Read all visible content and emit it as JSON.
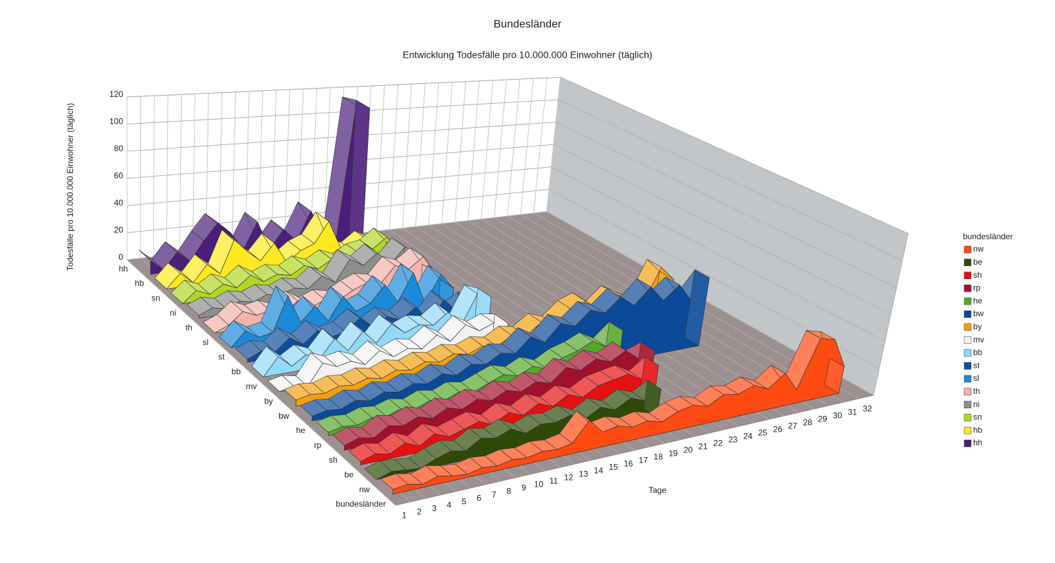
{
  "chart_data": {
    "type": "3d-area",
    "title": "Bundesländer",
    "subtitle": "Entwicklung Todesfälle pro 10.000.000 Einwohner (täglich)",
    "x_label": "Tage",
    "y_label": "Todesfälle pro 10.000.000 Einwohner (täglich)",
    "z_label": "bundesländer",
    "legend_title": "bundesländer",
    "legend": "right",
    "grid": true,
    "categories": [
      "1",
      "2",
      "3",
      "4",
      "5",
      "6",
      "7",
      "8",
      "9",
      "10",
      "11",
      "12",
      "13",
      "14",
      "15",
      "16",
      "17",
      "18",
      "19",
      "20",
      "21",
      "22",
      "23",
      "24",
      "25",
      "26",
      "27",
      "28",
      "29",
      "30",
      "31",
      "32"
    ],
    "ylim": [
      0,
      120
    ],
    "yticks": [
      0,
      20,
      40,
      60,
      80,
      100,
      120
    ],
    "series": [
      {
        "name": "nw",
        "color": "#ff4a12",
        "values": [
          3,
          4,
          2,
          5,
          3,
          2,
          4,
          3,
          5,
          4,
          6,
          5,
          7,
          20,
          10,
          12,
          9,
          11,
          8,
          13,
          15,
          12,
          18,
          16,
          20,
          15,
          24,
          10,
          45,
          42,
          20,
          null
        ]
      },
      {
        "name": "be",
        "color": "#2f4a08",
        "values": [
          0,
          3,
          2,
          1,
          5,
          8,
          6,
          12,
          10,
          14,
          9,
          13,
          12,
          15,
          10,
          16,
          12,
          18,
          14,
          20,
          null,
          null,
          null,
          null,
          null,
          null,
          null,
          null,
          null,
          null,
          null,
          null
        ]
      },
      {
        "name": "sh",
        "color": "#e61010",
        "values": [
          2,
          5,
          3,
          8,
          4,
          10,
          6,
          9,
          12,
          8,
          14,
          10,
          16,
          12,
          18,
          14,
          20,
          22,
          24,
          18,
          26,
          null,
          null,
          null,
          null,
          null,
          null,
          null,
          null,
          null,
          null,
          null
        ]
      },
      {
        "name": "rp",
        "color": "#a3102c",
        "values": [
          3,
          6,
          4,
          10,
          8,
          12,
          9,
          14,
          11,
          16,
          13,
          18,
          15,
          20,
          17,
          26,
          22,
          28,
          24,
          30,
          22,
          26,
          null,
          null,
          null,
          null,
          null,
          null,
          null,
          null,
          null,
          null
        ]
      },
      {
        "name": "he",
        "color": "#55a82a",
        "values": [
          2,
          4,
          3,
          6,
          5,
          8,
          6,
          10,
          8,
          12,
          10,
          14,
          18,
          15,
          20,
          16,
          22,
          25,
          30,
          24,
          34,
          null,
          null,
          null,
          null,
          null,
          null,
          null,
          null,
          null,
          null,
          null
        ]
      },
      {
        "name": "bw",
        "color": "#0b4a98",
        "values": [
          3,
          5,
          4,
          8,
          6,
          10,
          8,
          12,
          10,
          15,
          12,
          18,
          16,
          22,
          20,
          30,
          24,
          36,
          32,
          42,
          38,
          48,
          40,
          52,
          40,
          50,
          36,
          52,
          null,
          null,
          null,
          null
        ]
      },
      {
        "name": "by",
        "color": "#f2a012",
        "values": [
          4,
          6,
          5,
          8,
          7,
          10,
          8,
          12,
          10,
          14,
          12,
          16,
          14,
          18,
          16,
          22,
          20,
          28,
          24,
          34,
          38,
          30,
          40,
          34,
          28,
          55,
          44,
          null,
          null,
          null,
          null,
          null
        ]
      },
      {
        "name": "mv",
        "color": "#f2f2f2",
        "values": [
          0,
          2,
          0,
          14,
          10,
          12,
          8,
          16,
          10,
          14,
          12,
          20,
          14,
          24,
          18,
          22,
          20,
          null,
          null,
          null,
          null,
          null,
          null,
          null,
          null,
          null,
          null,
          null,
          null,
          null,
          null,
          null
        ]
      },
      {
        "name": "bb",
        "color": "#92d8f8",
        "values": [
          0,
          12,
          4,
          10,
          6,
          18,
          8,
          20,
          10,
          22,
          14,
          18,
          16,
          24,
          12,
          34,
          30,
          null,
          null,
          null,
          null,
          null,
          null,
          null,
          null,
          null,
          null,
          null,
          null,
          null,
          null,
          null
        ]
      },
      {
        "name": "st",
        "color": "#0e4e9c",
        "values": [
          2,
          6,
          4,
          12,
          6,
          14,
          8,
          10,
          18,
          10,
          16,
          12,
          20,
          8,
          22,
          12,
          18,
          null,
          null,
          null,
          null,
          null,
          null,
          null,
          null,
          null,
          null,
          null,
          null,
          null,
          null,
          null
        ]
      },
      {
        "name": "sl",
        "color": "#1b8ad8",
        "values": [
          0,
          10,
          4,
          6,
          30,
          10,
          20,
          8,
          24,
          12,
          16,
          28,
          14,
          34,
          10,
          30,
          18,
          null,
          null,
          null,
          null,
          null,
          null,
          null,
          null,
          null,
          null,
          null,
          null,
          null,
          null,
          null
        ]
      },
      {
        "name": "th",
        "color": "#f4b2aa",
        "values": [
          0,
          4,
          12,
          8,
          10,
          6,
          14,
          8,
          12,
          10,
          16,
          20,
          18,
          30,
          26,
          34,
          20,
          null,
          null,
          null,
          null,
          null,
          null,
          null,
          null,
          null,
          null,
          null,
          null,
          null,
          null,
          null
        ]
      },
      {
        "name": "ni",
        "color": "#8e8e8e",
        "values": [
          2,
          6,
          4,
          8,
          6,
          10,
          8,
          12,
          10,
          18,
          12,
          28,
          22,
          30,
          20,
          32,
          24,
          null,
          null,
          null,
          null,
          null,
          null,
          null,
          null,
          null,
          null,
          null,
          null,
          null,
          null,
          null
        ]
      },
      {
        "name": "sn",
        "color": "#b2d622",
        "values": [
          0,
          8,
          4,
          10,
          6,
          14,
          8,
          12,
          10,
          16,
          12,
          18,
          14,
          20,
          22,
          30,
          18,
          null,
          null,
          null,
          null,
          null,
          null,
          null,
          null,
          null,
          null,
          null,
          null,
          null,
          null,
          null
        ]
      },
      {
        "name": "hb",
        "color": "#ffe81e",
        "values": [
          0,
          10,
          2,
          14,
          6,
          30,
          20,
          12,
          24,
          8,
          16,
          20,
          36,
          14,
          10,
          18,
          12,
          null,
          null,
          null,
          null,
          null,
          null,
          null,
          null,
          null,
          null,
          null,
          null,
          null,
          null,
          null
        ]
      },
      {
        "name": "hh",
        "color": "#4a1e7a",
        "values": [
          10,
          2,
          14,
          6,
          20,
          32,
          24,
          10,
          30,
          8,
          22,
          12,
          34,
          16,
          10,
          115,
          112,
          null,
          null,
          null,
          null,
          null,
          null,
          null,
          null,
          null,
          null,
          null,
          null,
          null,
          null,
          null
        ]
      }
    ]
  }
}
